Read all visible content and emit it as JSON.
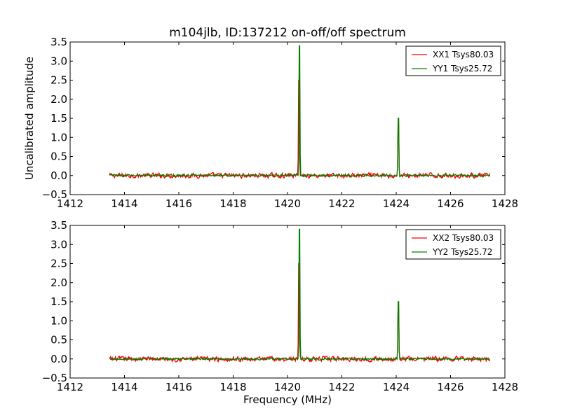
{
  "title": "m104jlb, ID:137212 on-off/off spectrum",
  "chart_data": [
    {
      "type": "line",
      "ylabel": "Uncalibrated amplitude",
      "xlabel": "",
      "xlim": [
        1412,
        1428
      ],
      "ylim": [
        -0.5,
        3.5
      ],
      "xticks": [
        "1412",
        "1414",
        "1416",
        "1418",
        "1420",
        "1422",
        "1424",
        "1426",
        "1428"
      ],
      "yticks": [
        "−0.5",
        "0.0",
        "0.5",
        "1.0",
        "1.5",
        "2.0",
        "2.5",
        "3.0",
        "3.5"
      ],
      "grid": false,
      "legend_position": "top-right",
      "x_range": [
        1413.45,
        1427.45
      ],
      "series": [
        {
          "name": "XX1 Tsys80.03",
          "color": "#ff0000",
          "noise_level": 0.09,
          "peaks": [
            [
              1420.42,
              2.5
            ],
            [
              1424.08,
              1.5
            ]
          ]
        },
        {
          "name": "YY1 Tsys25.72",
          "color": "#008000",
          "noise_level": 0.04,
          "peaks": [
            [
              1420.44,
              3.4
            ],
            [
              1424.08,
              1.5
            ]
          ]
        }
      ]
    },
    {
      "type": "line",
      "ylabel": "",
      "xlabel": "Frequency (MHz)",
      "xlim": [
        1412,
        1428
      ],
      "ylim": [
        -0.5,
        3.5
      ],
      "xticks": [
        "1412",
        "1414",
        "1416",
        "1418",
        "1420",
        "1422",
        "1424",
        "1426",
        "1428"
      ],
      "yticks": [
        "−0.5",
        "0.0",
        "0.5",
        "1.0",
        "1.5",
        "2.0",
        "2.5",
        "3.0",
        "3.5"
      ],
      "grid": false,
      "legend_position": "top-right",
      "x_range": [
        1413.45,
        1427.45
      ],
      "series": [
        {
          "name": "XX2 Tsys80.03",
          "color": "#ff0000",
          "noise_level": 0.09,
          "peaks": [
            [
              1420.42,
              2.5
            ],
            [
              1424.08,
              1.5
            ]
          ]
        },
        {
          "name": "YY2 Tsys25.72",
          "color": "#008000",
          "noise_level": 0.04,
          "peaks": [
            [
              1420.44,
              3.4
            ],
            [
              1424.08,
              1.5
            ]
          ]
        }
      ]
    }
  ]
}
